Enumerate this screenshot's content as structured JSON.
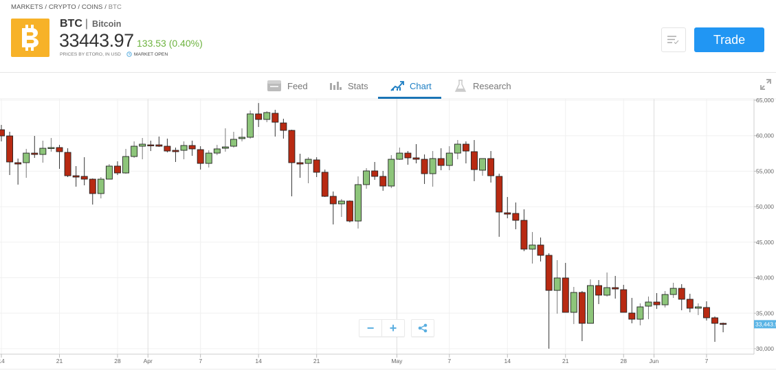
{
  "breadcrumb": [
    "MARKETS",
    "CRYPTO",
    "COINS",
    "BTC"
  ],
  "instrument": {
    "symbol": "BTC",
    "name": "Bitcoin",
    "price": "33443.97",
    "change": "133.53 (0.40%)",
    "prices_by": "PRICES BY ETORO, IN USD",
    "market_status": "MARKET OPEN",
    "logo_icon": "bitcoin-logo",
    "logo_color": "#f7b228"
  },
  "header": {
    "trade_label": "Trade",
    "list_icon": "watchlist-icon"
  },
  "tabs": [
    {
      "label": "Feed",
      "icon": "feed-icon",
      "active": false
    },
    {
      "label": "Stats",
      "icon": "stats-icon",
      "active": false
    },
    {
      "label": "Chart",
      "icon": "chart-icon",
      "active": true
    },
    {
      "label": "Research",
      "icon": "flask-icon",
      "active": false
    }
  ],
  "colors": {
    "accent": "#2196f3",
    "up": "#8dc57a",
    "down": "#b82a12",
    "change": "#6db33f",
    "price_label": "#5ab4e5"
  },
  "chart_data": {
    "type": "candlestick",
    "y_ticks": [
      "65,000",
      "60,000",
      "55,000",
      "50,000",
      "45,000",
      "40,000",
      "35,000",
      "30,000"
    ],
    "ylim": [
      30000,
      65000
    ],
    "x_ticks": [
      "14",
      "21",
      "28",
      "Apr",
      "7",
      "14",
      "21",
      "May",
      "7",
      "14",
      "21",
      "28",
      "Jun",
      "7"
    ],
    "last_price_label": "33,443.97",
    "grid": true,
    "columns": [
      "date",
      "open",
      "high",
      "low",
      "close"
    ],
    "candles": [
      [
        "Mar 14",
        60840,
        61520,
        59200,
        59970
      ],
      [
        "Mar 15",
        59970,
        60550,
        54460,
        56300
      ],
      [
        "Mar 16",
        56200,
        56780,
        53110,
        56010
      ],
      [
        "Mar 17",
        56200,
        58140,
        54070,
        57550
      ],
      [
        "Mar 18",
        57550,
        59970,
        56880,
        57360
      ],
      [
        "Mar 19",
        57360,
        59300,
        56200,
        58230
      ],
      [
        "Mar 20",
        58230,
        59680,
        57750,
        58330
      ],
      [
        "Mar 21",
        58330,
        58710,
        55330,
        57750
      ],
      [
        "Mar 22",
        57650,
        58230,
        54170,
        54360
      ],
      [
        "Mar 23",
        54360,
        55720,
        52820,
        54170
      ],
      [
        "Mar 24",
        54270,
        56970,
        53010,
        53880
      ],
      [
        "Mar 25",
        53880,
        53980,
        50300,
        51850
      ],
      [
        "Mar 26",
        51850,
        54170,
        51170,
        53880
      ],
      [
        "Mar 27",
        53880,
        56010,
        53880,
        55720
      ],
      [
        "Mar 28",
        55720,
        56390,
        54460,
        54750
      ],
      [
        "Mar 29",
        54750,
        58140,
        54650,
        57070
      ],
      [
        "Mar 30",
        57070,
        59200,
        56880,
        58520
      ],
      [
        "Mar 31",
        58520,
        59680,
        56680,
        58810
      ],
      [
        "Apr 1",
        58710,
        59300,
        57840,
        58620
      ],
      [
        "Apr 2",
        58710,
        59880,
        58420,
        58520
      ],
      [
        "Apr 3",
        58520,
        59590,
        57650,
        57840
      ],
      [
        "Apr 4",
        57940,
        58330,
        56300,
        57750
      ],
      [
        "Apr 5",
        57940,
        59200,
        56680,
        58620
      ],
      [
        "Apr 6",
        58620,
        59300,
        57170,
        58140
      ],
      [
        "Apr 7",
        58040,
        58520,
        55230,
        56100
      ],
      [
        "Apr 8",
        56100,
        57940,
        55520,
        57550
      ],
      [
        "Apr 9",
        57550,
        58710,
        57260,
        58140
      ],
      [
        "Apr 10",
        58230,
        61040,
        57750,
        58420
      ],
      [
        "Apr 11",
        58520,
        60550,
        58330,
        59490
      ],
      [
        "Apr 12",
        59590,
        61040,
        59200,
        59780
      ],
      [
        "Apr 13",
        59780,
        63550,
        59590,
        63070
      ],
      [
        "Apr 14",
        63070,
        64600,
        61230,
        62290
      ],
      [
        "Apr 15",
        62290,
        63450,
        61900,
        63260
      ],
      [
        "Apr 16",
        63160,
        63650,
        59880,
        61900
      ],
      [
        "Apr 17",
        61800,
        62390,
        59590,
        60750
      ],
      [
        "Apr 18",
        60750,
        60840,
        51460,
        56200
      ],
      [
        "Apr 19",
        56200,
        57460,
        54070,
        56010
      ],
      [
        "Apr 20",
        56100,
        56970,
        53300,
        56680
      ],
      [
        "Apr 21",
        56590,
        56970,
        54170,
        54850
      ],
      [
        "Apr 22",
        54850,
        55230,
        51370,
        51460
      ],
      [
        "Apr 23",
        51460,
        52140,
        47500,
        50400
      ],
      [
        "Apr 24",
        50400,
        51080,
        48560,
        50790
      ],
      [
        "Apr 25",
        50790,
        50880,
        47790,
        47980
      ],
      [
        "Apr 26",
        47980,
        54270,
        46920,
        53110
      ],
      [
        "Apr 27",
        53110,
        55430,
        52530,
        55040
      ],
      [
        "Apr 28",
        55040,
        56300,
        53780,
        54270
      ],
      [
        "Apr 29",
        54270,
        55040,
        52240,
        52910
      ],
      [
        "Apr 30",
        52910,
        57260,
        52620,
        56680
      ],
      [
        "May 1",
        56680,
        58330,
        56590,
        57550
      ],
      [
        "May 2",
        57550,
        57840,
        55910,
        56880
      ],
      [
        "May 3",
        56880,
        58810,
        56100,
        56680
      ],
      [
        "May 4",
        56680,
        57360,
        53200,
        54650
      ],
      [
        "May 5",
        54650,
        57840,
        52820,
        56780
      ],
      [
        "May 6",
        56780,
        58230,
        55140,
        55810
      ],
      [
        "May 7",
        55810,
        58520,
        55140,
        57550
      ],
      [
        "May 8",
        57550,
        59390,
        56680,
        58810
      ],
      [
        "May 9",
        58810,
        59200,
        56100,
        57840
      ],
      [
        "May 10",
        57750,
        59390,
        53590,
        55230
      ],
      [
        "May 11",
        55140,
        56780,
        54360,
        56780
      ],
      [
        "May 12",
        56780,
        57840,
        53400,
        54360
      ],
      [
        "May 13",
        54270,
        54650,
        45760,
        49240
      ],
      [
        "May 14",
        49140,
        51370,
        48370,
        48950
      ],
      [
        "May 15",
        49050,
        50590,
        46820,
        48080
      ],
      [
        "May 16",
        48080,
        49630,
        43730,
        44020
      ],
      [
        "May 17",
        44020,
        46430,
        41990,
        44600
      ],
      [
        "May 18",
        44600,
        45660,
        42280,
        43150
      ],
      [
        "May 19",
        43150,
        43440,
        30000,
        38210
      ],
      [
        "May 20",
        38210,
        42470,
        34930,
        39960
      ],
      [
        "May 21",
        39960,
        42080,
        35120,
        35120
      ],
      [
        "May 22",
        35120,
        38700,
        33470,
        37920
      ],
      [
        "May 23",
        37920,
        38120,
        31060,
        33570
      ],
      [
        "May 24",
        33570,
        39760,
        33570,
        38890
      ],
      [
        "May 25",
        38890,
        39670,
        36280,
        37540
      ],
      [
        "May 26",
        37540,
        40730,
        37340,
        38600
      ],
      [
        "May 27",
        38600,
        40250,
        37050,
        38410
      ],
      [
        "May 28",
        38310,
        38990,
        35120,
        35120
      ],
      [
        "May 29",
        35020,
        37150,
        33570,
        34150
      ],
      [
        "May 30",
        34150,
        36380,
        33280,
        35890
      ],
      [
        "May 31",
        35990,
        37340,
        34150,
        36570
      ],
      [
        "Jun 1",
        36570,
        37830,
        35600,
        36180
      ],
      [
        "Jun 2",
        36180,
        38120,
        35800,
        37630
      ],
      [
        "Jun 3",
        37630,
        39280,
        37150,
        38500
      ],
      [
        "Jun 4",
        38500,
        39090,
        35410,
        36960
      ],
      [
        "Jun 5",
        36960,
        37730,
        35120,
        35700
      ],
      [
        "Jun 6",
        35700,
        36380,
        34730,
        35890
      ],
      [
        "Jun 7",
        35800,
        36670,
        33960,
        34350
      ],
      [
        "Jun 8",
        34350,
        34540,
        30960,
        33570
      ],
      [
        "Jun 9",
        33570,
        33670,
        32310,
        33444
      ]
    ]
  },
  "chart_controls": {
    "zoom_out": "−",
    "zoom_in": "+",
    "share_icon": "share-icon"
  }
}
